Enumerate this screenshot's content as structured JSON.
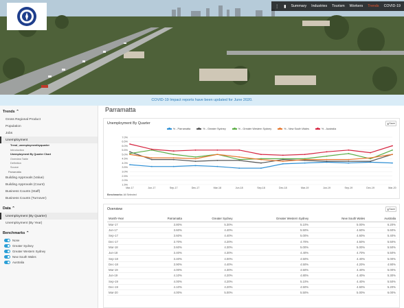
{
  "nav": {
    "items": [
      "Summary",
      "Industries",
      "Tourism",
      "Workers",
      "Trends",
      "COVID-19"
    ],
    "active": "Trends"
  },
  "banner": {
    "text": "COVID-19 Impact reports have been updated for June 2020."
  },
  "sidebar": {
    "trends_label": "Trends",
    "items": [
      "Gross Regional Product",
      "Population",
      "Jobs"
    ],
    "unemployment": "Unemployment",
    "subitems": [
      "Trend_unemploymentbyquarter",
      "Introduction",
      "Unemployment By Quarter Chart",
      "Overview Table",
      "Definition",
      "Source"
    ],
    "parramatta": "Parramatta",
    "more_items": [
      "Building Approvals (Value)",
      "Building Approvals (Count)",
      "Business Counts (Staff)",
      "Business Counts (Turnover)"
    ],
    "data_label": "Data",
    "data_items": [
      "Unemployment (By Quarter)",
      "Unemployment (By Year)"
    ],
    "benchmarks_label": "Benchmarks",
    "benchmarks": [
      "None",
      "Greater Sydney",
      "Greater Western Sydney",
      "New South Wales",
      "Australia"
    ]
  },
  "page_title": "Parramatta",
  "chart_panel": {
    "title": "Unemployment By Quarter",
    "save_label": "Save",
    "note_label": "Benchmarks:",
    "note_value": "All Selected"
  },
  "table_panel": {
    "title": "Overview",
    "save_label": "Save"
  },
  "chart_data": {
    "type": "line",
    "categories": [
      "Mar-17",
      "Jun-17",
      "Sep-17",
      "Dec-17",
      "Mar-18",
      "Jun-18",
      "Sep-18",
      "Dec-18",
      "Mar-19",
      "Jun-19",
      "Sep-19",
      "Dec-19",
      "Mar-20"
    ],
    "tick_labels": [
      "Mar-17",
      "Jun-17",
      "Sep-17",
      "Dec-17",
      "Mar-18",
      "Jun-18",
      "Sep-18",
      "Dec-18",
      "Mar-19",
      "Jun-19",
      "Sep-19",
      "Dec-19",
      "Mar-20"
    ],
    "y_ticks": [
      "7.0%",
      "6.5%",
      "6.0%",
      "5.5%",
      "5.0%",
      "4.5%",
      "4.0%",
      "3.5%",
      "3.0%",
      "2.5%",
      "2.0%",
      "1.5%"
    ],
    "ylim": [
      1.5,
      7.0
    ],
    "grid": true,
    "legend_position": "top",
    "series": [
      {
        "name": "% - Parramatta",
        "color": "#2d8fd5",
        "values": [
          3.8,
          3.6,
          3.6,
          3.7,
          3.6,
          3.4,
          3.4,
          3.9,
          4.0,
          4.1,
          4.0,
          4.1,
          4.0
        ]
      },
      {
        "name": "% - Greater Sydney",
        "color": "#555555",
        "values": [
          5.3,
          4.4,
          4.4,
          4.2,
          4.3,
          4.3,
          4.0,
          4.4,
          4.3,
          4.2,
          4.2,
          4.2,
          5.0
        ]
      },
      {
        "name": "% - Greater Western Sydney",
        "color": "#5aad45",
        "values": [
          5.1,
          5.5,
          5.0,
          4.7,
          5.0,
          4.4,
          4.5,
          4.5,
          4.5,
          4.8,
          5.1,
          4.5,
          5.5
        ]
      },
      {
        "name": "% - New South Wales",
        "color": "#e7782f",
        "values": [
          5.0,
          4.6,
          4.6,
          4.5,
          5.0,
          4.7,
          4.4,
          4.2,
          4.4,
          4.4,
          4.4,
          4.6,
          5.0
        ]
      },
      {
        "name": "% - Australia",
        "color": "#d6233f",
        "values": [
          6.2,
          5.6,
          5.4,
          5.5,
          5.5,
          5.5,
          5.0,
          4.9,
          5.0,
          5.3,
          5.5,
          5.2,
          6.0
        ]
      }
    ]
  },
  "table": {
    "columns": [
      "Month-Year",
      "Parramatta",
      "Greater Sydney",
      "Greater Western Sydney",
      "New South Wales",
      "Australia"
    ],
    "rows": [
      [
        "Mar-17",
        "3.80%",
        "5.30%",
        "5.10%",
        "5.00%",
        "6.20%"
      ],
      [
        "Jun-17",
        "3.60%",
        "4.40%",
        "5.50%",
        "4.60%",
        "5.60%"
      ],
      [
        "Sep-17",
        "3.60%",
        "4.40%",
        "5.00%",
        "4.60%",
        "5.40%"
      ],
      [
        "Dec-17",
        "3.70%",
        "4.20%",
        "4.70%",
        "4.50%",
        "5.50%"
      ],
      [
        "Mar-18",
        "3.60%",
        "4.30%",
        "5.00%",
        "5.00%",
        "5.50%"
      ],
      [
        "Jun-18",
        "3.40%",
        "4.30%",
        "4.40%",
        "4.70%",
        "5.50%"
      ],
      [
        "Sep-18",
        "3.40%",
        "4.00%",
        "4.50%",
        "4.40%",
        "5.00%"
      ],
      [
        "Dec-18",
        "3.90%",
        "4.40%",
        "4.50%",
        "4.20%",
        "4.90%"
      ],
      [
        "Mar-19",
        "4.00%",
        "4.30%",
        "4.50%",
        "4.40%",
        "5.00%"
      ],
      [
        "Jun-19",
        "4.10%",
        "4.20%",
        "4.80%",
        "4.40%",
        "5.30%"
      ],
      [
        "Sep-19",
        "4.00%",
        "4.20%",
        "5.10%",
        "4.40%",
        "5.50%"
      ],
      [
        "Dec-19",
        "4.10%",
        "4.20%",
        "4.50%",
        "4.60%",
        "5.20%"
      ],
      [
        "Mar-20",
        "4.00%",
        "5.00%",
        "5.50%",
        "5.00%",
        "6.00%"
      ]
    ]
  }
}
